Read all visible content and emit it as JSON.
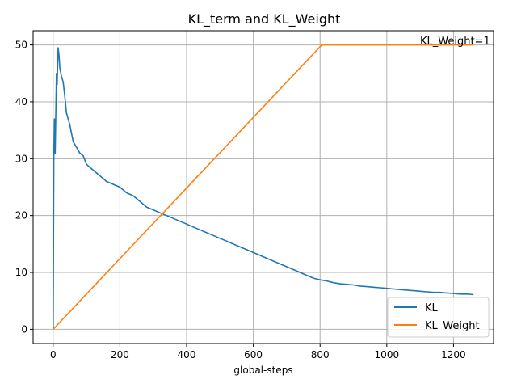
{
  "chart_data": {
    "type": "line",
    "title": "KL_term and KL_Weight",
    "xlabel": "global-steps",
    "ylabel": "",
    "xlim": [
      -60,
      1320
    ],
    "ylim": [
      -2.5,
      52.5
    ],
    "xticks": [
      0,
      200,
      400,
      600,
      800,
      1000,
      1200
    ],
    "yticks": [
      0,
      10,
      20,
      30,
      40,
      50
    ],
    "grid": true,
    "legend_position": "lower-right",
    "annotation": {
      "text": "KL_Weight=1",
      "x": 1100,
      "y": 50
    },
    "series": [
      {
        "name": "KL",
        "color": "#1f77b4",
        "x": [
          0,
          2,
          4,
          6,
          8,
          10,
          12,
          15,
          18,
          20,
          25,
          30,
          35,
          40,
          50,
          60,
          70,
          80,
          90,
          100,
          120,
          140,
          160,
          180,
          200,
          220,
          240,
          260,
          280,
          300,
          320,
          340,
          360,
          380,
          400,
          420,
          440,
          460,
          480,
          500,
          520,
          540,
          560,
          580,
          600,
          620,
          640,
          660,
          680,
          700,
          720,
          740,
          760,
          780,
          800,
          820,
          840,
          860,
          880,
          900,
          920,
          940,
          960,
          980,
          1000,
          1020,
          1040,
          1060,
          1080,
          1100,
          1120,
          1140,
          1160,
          1180,
          1200,
          1220,
          1240,
          1260
        ],
        "y": [
          0,
          30,
          37,
          31,
          38,
          45,
          43,
          49.5,
          48,
          46,
          44.5,
          43.5,
          41,
          38,
          36,
          33,
          32,
          31,
          30.5,
          29,
          28,
          27,
          26,
          25.5,
          25,
          24,
          23.5,
          22.5,
          21.5,
          21,
          20.5,
          20,
          19.5,
          19,
          18.5,
          18,
          17.5,
          17,
          16.5,
          16,
          15.5,
          15,
          14.5,
          14,
          13.5,
          13,
          12.5,
          12,
          11.5,
          11,
          10.5,
          10,
          9.5,
          9,
          8.7,
          8.5,
          8.2,
          8,
          7.9,
          7.8,
          7.6,
          7.5,
          7.4,
          7.3,
          7.2,
          7.1,
          7,
          6.9,
          6.8,
          6.7,
          6.6,
          6.5,
          6.5,
          6.4,
          6.3,
          6.2,
          6.2,
          6.1
        ]
      },
      {
        "name": "KL_Weight",
        "color": "#ff7f0e",
        "x": [
          0,
          805,
          1260
        ],
        "y": [
          0,
          50,
          50
        ]
      }
    ]
  }
}
